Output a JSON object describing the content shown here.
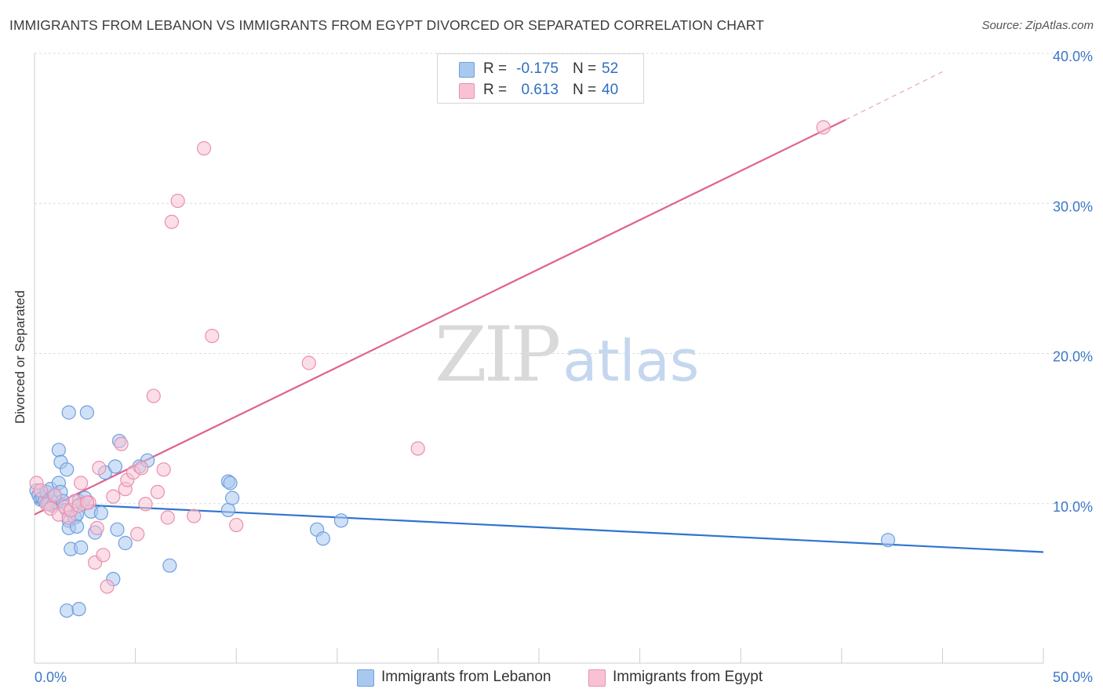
{
  "header": {
    "title": "IMMIGRANTS FROM LEBANON VS IMMIGRANTS FROM EGYPT DIVORCED OR SEPARATED CORRELATION CHART",
    "source": "Source: ZipAtlas.com"
  },
  "watermark": {
    "zip": "ZIP",
    "atlas": "atlas"
  },
  "legend": {
    "r_label": "R =",
    "n_label": "N =",
    "rows": [
      {
        "name": "Immigrants from Lebanon",
        "r": "-0.175",
        "n": "52",
        "color": "#a9c8f0",
        "border": "#6f9fde"
      },
      {
        "name": "Immigrants from Egypt",
        "r": "0.613",
        "n": "40",
        "color": "#f8c2d3",
        "border": "#e98fae"
      }
    ]
  },
  "chart_data": {
    "type": "scatter",
    "title": "IMMIGRANTS FROM LEBANON VS IMMIGRANTS FROM EGYPT DIVORCED OR SEPARATED CORRELATION CHART",
    "xlabel": "",
    "ylabel": "Divorced or Separated",
    "xlim": [
      0,
      50
    ],
    "ylim": [
      0,
      40
    ],
    "x_tick_labels": [
      "0.0%",
      "50.0%"
    ],
    "y_tick_labels": [
      "10.0%",
      "20.0%",
      "30.0%",
      "40.0%"
    ],
    "y_ticks": [
      10,
      20,
      30,
      40
    ],
    "grid": true,
    "legend_position": "top-center",
    "series": [
      {
        "name": "Immigrants from Lebanon",
        "color": "#6f9fde",
        "fill": "#a9c8f0",
        "line_color": "#2f73cf",
        "trend": {
          "x0": 0,
          "y0": 10.7,
          "x1": 50,
          "y1": 7.4
        },
        "points": [
          [
            0.1,
            11.5
          ],
          [
            0.2,
            11.2
          ],
          [
            0.3,
            10.9
          ],
          [
            0.4,
            11.0
          ],
          [
            0.5,
            10.8
          ],
          [
            0.6,
            11.4
          ],
          [
            0.7,
            10.6
          ],
          [
            0.8,
            11.6
          ],
          [
            0.9,
            10.5
          ],
          [
            1.0,
            11.1
          ],
          [
            1.1,
            10.7
          ],
          [
            1.2,
            12.0
          ],
          [
            1.3,
            11.4
          ],
          [
            1.4,
            10.8
          ],
          [
            1.2,
            14.2
          ],
          [
            1.3,
            13.4
          ],
          [
            1.6,
            10.2
          ],
          [
            1.7,
            9.5
          ],
          [
            1.8,
            7.6
          ],
          [
            1.7,
            9.0
          ],
          [
            1.6,
            12.9
          ],
          [
            1.7,
            16.7
          ],
          [
            2.0,
            9.7
          ],
          [
            2.1,
            9.9
          ],
          [
            2.1,
            9.1
          ],
          [
            2.2,
            10.8
          ],
          [
            2.3,
            7.7
          ],
          [
            2.4,
            10.6
          ],
          [
            2.6,
            16.7
          ],
          [
            2.8,
            10.1
          ],
          [
            3.0,
            8.7
          ],
          [
            3.3,
            10.0
          ],
          [
            3.5,
            12.7
          ],
          [
            3.9,
            5.6
          ],
          [
            4.0,
            13.1
          ],
          [
            4.1,
            8.9
          ],
          [
            4.2,
            14.8
          ],
          [
            4.5,
            8.0
          ],
          [
            5.2,
            13.1
          ],
          [
            5.6,
            13.5
          ],
          [
            6.7,
            6.5
          ],
          [
            9.6,
            12.1
          ],
          [
            9.7,
            12.0
          ],
          [
            9.6,
            10.2
          ],
          [
            9.8,
            11.0
          ],
          [
            14.0,
            8.9
          ],
          [
            14.3,
            8.3
          ],
          [
            15.2,
            9.5
          ],
          [
            42.3,
            8.2
          ],
          [
            1.6,
            3.5
          ],
          [
            2.2,
            3.6
          ],
          [
            2.5,
            11.0
          ]
        ]
      },
      {
        "name": "Immigrants from Egypt",
        "color": "#e98fae",
        "fill": "#f8c2d3",
        "line_color": "#e06290",
        "trend": {
          "x0": 0,
          "y0": 9.9,
          "x1": 40.2,
          "y1": 36.2
        },
        "trend_ext": {
          "x0": 40.2,
          "y0": 36.2,
          "x1": 45,
          "y1": 39.4
        },
        "points": [
          [
            0.1,
            12.0
          ],
          [
            0.3,
            11.5
          ],
          [
            0.6,
            10.6
          ],
          [
            0.8,
            10.3
          ],
          [
            1.0,
            11.2
          ],
          [
            1.2,
            9.9
          ],
          [
            1.5,
            10.4
          ],
          [
            1.7,
            9.7
          ],
          [
            1.8,
            10.2
          ],
          [
            2.0,
            10.8
          ],
          [
            2.2,
            10.5
          ],
          [
            2.3,
            12.0
          ],
          [
            2.7,
            10.7
          ],
          [
            3.0,
            6.7
          ],
          [
            3.2,
            13.0
          ],
          [
            3.4,
            7.2
          ],
          [
            3.6,
            5.1
          ],
          [
            3.9,
            11.1
          ],
          [
            4.3,
            14.6
          ],
          [
            4.5,
            11.6
          ],
          [
            4.6,
            12.2
          ],
          [
            4.9,
            12.7
          ],
          [
            5.1,
            8.6
          ],
          [
            5.3,
            13.0
          ],
          [
            5.5,
            10.6
          ],
          [
            5.9,
            17.8
          ],
          [
            6.1,
            11.4
          ],
          [
            6.4,
            12.9
          ],
          [
            6.6,
            9.7
          ],
          [
            6.8,
            29.4
          ],
          [
            7.1,
            30.8
          ],
          [
            7.9,
            9.8
          ],
          [
            8.4,
            34.3
          ],
          [
            8.8,
            21.8
          ],
          [
            10.0,
            9.2
          ],
          [
            13.6,
            20.0
          ],
          [
            19.0,
            14.3
          ],
          [
            39.1,
            35.7
          ],
          [
            3.1,
            9.0
          ],
          [
            2.6,
            10.7
          ]
        ]
      }
    ]
  }
}
